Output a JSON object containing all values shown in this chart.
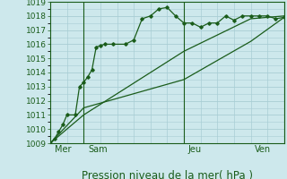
{
  "title": "Pression niveau de la mer( hPa )",
  "background_color": "#cde8ec",
  "grid_color": "#a8cdd4",
  "line_color": "#1a5c1a",
  "ylim": [
    1009,
    1019
  ],
  "yticks": [
    1009,
    1010,
    1011,
    1012,
    1013,
    1014,
    1015,
    1016,
    1017,
    1018,
    1019
  ],
  "xlim": [
    0,
    28
  ],
  "day_vlines": [
    4,
    16,
    28
  ],
  "day_labels": [
    "Mer",
    "Sam",
    "Jeu",
    "Ven"
  ],
  "day_label_xpix": [
    0.5,
    4.5,
    16.5,
    24.5
  ],
  "series1_x": [
    0,
    0.5,
    1.0,
    1.5,
    2.0,
    3.0,
    3.5,
    4.0,
    4.5,
    5.0,
    5.5,
    6.0,
    6.5,
    7.5,
    9.0,
    10.0,
    11.0,
    12.0,
    13.0,
    14.0,
    15.0,
    16.0,
    17.0,
    18.0,
    19.0,
    20.0,
    21.0,
    22.0,
    23.0,
    24.0,
    25.0,
    26.0,
    27.0,
    28.0
  ],
  "series1_y": [
    1009.0,
    1009.3,
    1009.8,
    1010.3,
    1011.0,
    1011.0,
    1013.0,
    1013.3,
    1013.7,
    1014.2,
    1015.8,
    1015.9,
    1016.0,
    1016.0,
    1016.0,
    1016.3,
    1017.8,
    1018.0,
    1018.5,
    1018.6,
    1018.0,
    1017.5,
    1017.5,
    1017.2,
    1017.5,
    1017.5,
    1018.0,
    1017.7,
    1018.0,
    1018.0,
    1018.0,
    1018.0,
    1017.8,
    1017.9
  ],
  "series2_x": [
    0,
    4,
    16,
    24,
    28
  ],
  "series2_y": [
    1009.0,
    1011.0,
    1015.5,
    1017.8,
    1018.0
  ],
  "series3_x": [
    0,
    4,
    16,
    24,
    28
  ],
  "series3_y": [
    1009.0,
    1011.5,
    1013.5,
    1016.2,
    1017.9
  ],
  "tick_fontsize": 6.5,
  "label_fontsize": 8.5
}
